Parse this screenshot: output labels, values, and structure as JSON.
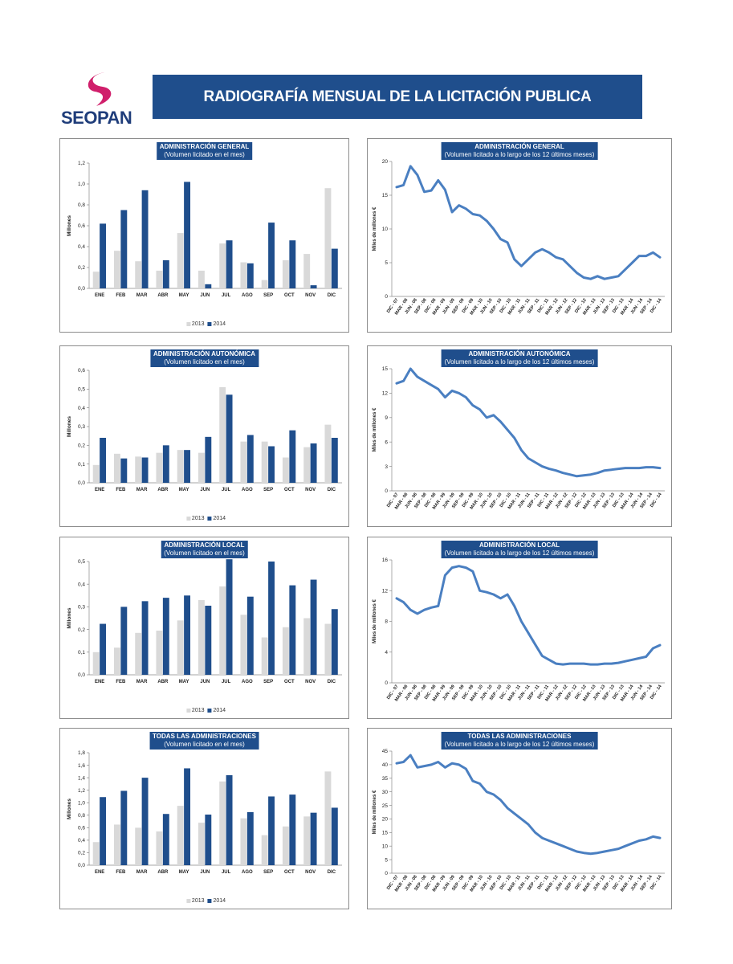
{
  "header": {
    "logo_text": "SEOPAN",
    "title": "RADIOGRAFÍA MENSUAL DE LA LICITACIÓN PUBLICA"
  },
  "colors": {
    "banner": "#1f4e8c",
    "s2013": "#d9d9d9",
    "s2014": "#1f4e8c",
    "line": "#4a7fc1",
    "logo_magenta": "#d01f6b"
  },
  "legend": {
    "s2013": "2013",
    "s2014": "2014"
  },
  "chart_data": [
    {
      "type": "bar",
      "title": "ADMINISTRACIÓN GENERAL",
      "subtitle": "(Volumen licitado en el mes)",
      "ylabel": "Millones",
      "ylim": [
        0,
        1.2
      ],
      "yticks": [
        "0,0",
        "0,2",
        "0,4",
        "0,6",
        "0,8",
        "1,0",
        "1,2"
      ],
      "categories": [
        "ENE",
        "FEB",
        "MAR",
        "ABR",
        "MAY",
        "JUN",
        "JUL",
        "AGO",
        "SEP",
        "OCT",
        "NOV",
        "DIC"
      ],
      "series": [
        {
          "name": "2013",
          "values": [
            0.16,
            0.36,
            0.26,
            0.17,
            0.53,
            0.17,
            0.43,
            0.25,
            0.08,
            0.27,
            0.33,
            0.96
          ]
        },
        {
          "name": "2014",
          "values": [
            0.62,
            0.75,
            0.94,
            0.27,
            1.02,
            0.04,
            0.46,
            0.24,
            0.63,
            0.46,
            0.03,
            0.38
          ]
        }
      ]
    },
    {
      "type": "line",
      "title": "ADMINISTRACIÓN GENERAL",
      "subtitle": "(Volumen licitado a lo largo de los 12 últimos meses)",
      "ylabel": "Miles de millones €",
      "ylim": [
        0,
        20
      ],
      "yticks": [
        "0",
        "5",
        "10",
        "15",
        "20"
      ],
      "xticks": [
        "DIC - 07",
        "MAR - 08",
        "JUN - 08",
        "SEP - 08",
        "DIC - 08",
        "MAR - 09",
        "JUN - 09",
        "SEP - 09",
        "DIC - 09",
        "MAR - 10",
        "JUN - 10",
        "SEP - 10",
        "DIC - 10",
        "MAR - 11",
        "JUN - 11",
        "SEP - 11",
        "DIC - 11",
        "MAR - 12",
        "JUN - 12",
        "SEP - 12",
        "DIC - 12",
        "MAR - 13",
        "JUN - 13",
        "SEP - 13",
        "DIC - 13",
        "MAR - 14",
        "JUN - 14",
        "SEP - 14",
        "DIC - 14"
      ],
      "values": [
        16.2,
        16.5,
        19.3,
        18.0,
        15.5,
        15.7,
        17.2,
        15.8,
        12.5,
        13.5,
        13.0,
        12.2,
        12.0,
        11.2,
        10.0,
        8.5,
        8.0,
        5.5,
        4.5,
        5.5,
        6.5,
        7.0,
        6.5,
        5.8,
        5.5,
        4.5,
        3.5,
        2.8,
        2.6,
        3.0,
        2.6,
        2.8,
        3.0,
        4.0,
        5.0,
        6.0,
        6.0,
        6.5,
        5.8
      ]
    },
    {
      "type": "bar",
      "title": "ADMINISTRACIÓN AUTONÓMICA",
      "subtitle": "(Volumen licitado en el mes)",
      "ylabel": "Millones",
      "ylim": [
        0,
        0.6
      ],
      "yticks": [
        "0,0",
        "0,1",
        "0,2",
        "0,3",
        "0,4",
        "0,5",
        "0,6"
      ],
      "categories": [
        "ENE",
        "FEB",
        "MAR",
        "ABR",
        "MAY",
        "JUN",
        "JUL",
        "AGO",
        "SEP",
        "OCT",
        "NOV",
        "DIC"
      ],
      "series": [
        {
          "name": "2013",
          "values": [
            0.095,
            0.155,
            0.14,
            0.16,
            0.175,
            0.16,
            0.51,
            0.22,
            0.22,
            0.135,
            0.19,
            0.31
          ]
        },
        {
          "name": "2014",
          "values": [
            0.24,
            0.13,
            0.135,
            0.2,
            0.175,
            0.245,
            0.47,
            0.255,
            0.195,
            0.28,
            0.21,
            0.24
          ]
        }
      ]
    },
    {
      "type": "line",
      "title": "ADMINISTRACIÓN AUTONÓMICA",
      "subtitle": "(Volumen licitado a lo largo de los 12 últimos meses)",
      "ylabel": "Miles de millones €",
      "ylim": [
        0,
        15
      ],
      "yticks": [
        "0",
        "3",
        "6",
        "9",
        "12",
        "15"
      ],
      "xticks": [
        "DIC - 07",
        "MAR - 08",
        "JUN - 08",
        "SEP - 08",
        "DIC - 08",
        "MAR - 09",
        "JUN - 09",
        "SEP - 09",
        "DIC - 09",
        "MAR - 10",
        "JUN - 10",
        "SEP - 10",
        "DIC - 10",
        "MAR - 11",
        "JUN - 11",
        "SEP - 11",
        "DIC - 11",
        "MAR - 12",
        "JUN - 12",
        "SEP - 12",
        "DIC - 12",
        "MAR - 13",
        "JUN - 13",
        "SEP - 13",
        "DIC - 13",
        "MAR - 14",
        "JUN - 14",
        "SEP - 14",
        "DIC - 14"
      ],
      "values": [
        13.2,
        13.5,
        15.0,
        14.0,
        13.5,
        13.0,
        12.5,
        11.5,
        12.3,
        12.0,
        11.5,
        10.5,
        10.0,
        9.0,
        9.3,
        8.5,
        7.5,
        6.5,
        5.0,
        4.0,
        3.5,
        3.0,
        2.7,
        2.5,
        2.2,
        2.0,
        1.8,
        1.9,
        2.0,
        2.2,
        2.5,
        2.6,
        2.7,
        2.8,
        2.8,
        2.8,
        2.9,
        2.9,
        2.8
      ]
    },
    {
      "type": "bar",
      "title": "ADMINISTRACIÓN LOCAL",
      "subtitle": "(Volumen licitado en el mes)",
      "ylabel": "Millones",
      "ylim": [
        0,
        0.5
      ],
      "yticks": [
        "0,0",
        "0,1",
        "0,2",
        "0,3",
        "0,4",
        "0,5"
      ],
      "categories": [
        "ENE",
        "FEB",
        "MAR",
        "ABR",
        "MAY",
        "JUN",
        "JUL",
        "AGO",
        "SEP",
        "OCT",
        "NOV",
        "DIC"
      ],
      "series": [
        {
          "name": "2013",
          "values": [
            0.1,
            0.12,
            0.185,
            0.195,
            0.24,
            0.33,
            0.39,
            0.265,
            0.165,
            0.21,
            0.25,
            0.225
          ]
        },
        {
          "name": "2014",
          "values": [
            0.225,
            0.3,
            0.325,
            0.34,
            0.35,
            0.305,
            0.51,
            0.345,
            0.5,
            0.395,
            0.42,
            0.29
          ]
        }
      ]
    },
    {
      "type": "line",
      "title": "ADMINISTRACIÓN LOCAL",
      "subtitle": "(Volumen licitado a lo largo de los 12 últimos meses)",
      "ylabel": "Miles de millones €",
      "ylim": [
        0,
        16
      ],
      "yticks": [
        "0",
        "4",
        "8",
        "12",
        "16"
      ],
      "xticks": [
        "DIC - 07",
        "MAR - 08",
        "JUN - 08",
        "SEP - 08",
        "DIC - 08",
        "MAR - 09",
        "JUN - 09",
        "SEP - 09",
        "DIC - 09",
        "MAR - 10",
        "JUN - 10",
        "SEP - 10",
        "DIC - 10",
        "MAR - 11",
        "JUN - 11",
        "SEP - 11",
        "DIC - 11",
        "MAR - 12",
        "JUN - 12",
        "SEP - 12",
        "DIC - 12",
        "MAR - 13",
        "JUN - 13",
        "SEP - 13",
        "DIC - 13",
        "MAR - 14",
        "JUN - 14",
        "SEP - 14",
        "DIC - 14"
      ],
      "values": [
        11.0,
        10.5,
        9.5,
        9.0,
        9.5,
        9.8,
        10.0,
        14.0,
        15.0,
        15.2,
        15.0,
        14.5,
        12.0,
        11.8,
        11.5,
        11.0,
        11.5,
        10.0,
        8.0,
        6.5,
        5.0,
        3.5,
        3.0,
        2.5,
        2.4,
        2.5,
        2.5,
        2.5,
        2.4,
        2.4,
        2.5,
        2.5,
        2.6,
        2.8,
        3.0,
        3.2,
        3.4,
        4.5,
        4.9
      ]
    },
    {
      "type": "bar",
      "title": "TODAS  LAS ADMINISTRACIONES",
      "subtitle": "(Volumen licitado en el mes)",
      "ylabel": "Millones",
      "ylim": [
        0,
        1.8
      ],
      "yticks": [
        "0,0",
        "0,2",
        "0,4",
        "0,6",
        "0,8",
        "1,0",
        "1,2",
        "1,4",
        "1,6",
        "1,8"
      ],
      "categories": [
        "ENE",
        "FEB",
        "MAR",
        "ABR",
        "MAY",
        "JUN",
        "JUL",
        "AGO",
        "SEP",
        "OCT",
        "NOV",
        "DIC"
      ],
      "series": [
        {
          "name": "2013",
          "values": [
            0.37,
            0.65,
            0.6,
            0.54,
            0.95,
            0.68,
            1.34,
            0.75,
            0.48,
            0.62,
            0.78,
            1.5
          ]
        },
        {
          "name": "2014",
          "values": [
            1.09,
            1.19,
            1.4,
            0.82,
            1.55,
            0.81,
            1.44,
            0.85,
            1.1,
            1.13,
            0.84,
            0.92
          ]
        }
      ]
    },
    {
      "type": "line",
      "title": "TODAS LAS ADMINISTRACIONES",
      "subtitle": "(Volumen licitado a lo largo de los 12 últimos meses)",
      "ylabel": "Miles de millones €",
      "ylim": [
        0,
        45
      ],
      "yticks": [
        "0",
        "5",
        "10",
        "15",
        "20",
        "25",
        "30",
        "35",
        "40",
        "45"
      ],
      "xticks": [
        "DIC - 07",
        "MAR - 08",
        "JUN - 08",
        "SEP - 08",
        "DIC - 08",
        "MAR - 09",
        "JUN - 09",
        "SEP - 09",
        "DIC - 09",
        "MAR - 10",
        "JUN - 10",
        "SEP - 10",
        "DIC - 10",
        "MAR - 11",
        "JUN - 11",
        "SEP - 11",
        "DIC - 11",
        "MAR - 12",
        "JUN - 12",
        "SEP - 12",
        "DIC - 12",
        "MAR - 13",
        "JUN - 13",
        "SEP - 13",
        "DIC - 13",
        "MAR - 14",
        "JUN - 14",
        "SEP - 14",
        "DIC - 14"
      ],
      "values": [
        40.5,
        41.0,
        43.5,
        39.0,
        39.5,
        40.0,
        41.0,
        39.0,
        40.5,
        40.0,
        38.5,
        34.0,
        33.0,
        30.0,
        29.0,
        27.0,
        24.0,
        22.0,
        20.0,
        18.0,
        15.0,
        13.0,
        12.0,
        11.0,
        10.0,
        9.0,
        8.0,
        7.5,
        7.2,
        7.5,
        8.0,
        8.5,
        9.0,
        10.0,
        11.0,
        12.0,
        12.5,
        13.5,
        13.0
      ]
    }
  ]
}
